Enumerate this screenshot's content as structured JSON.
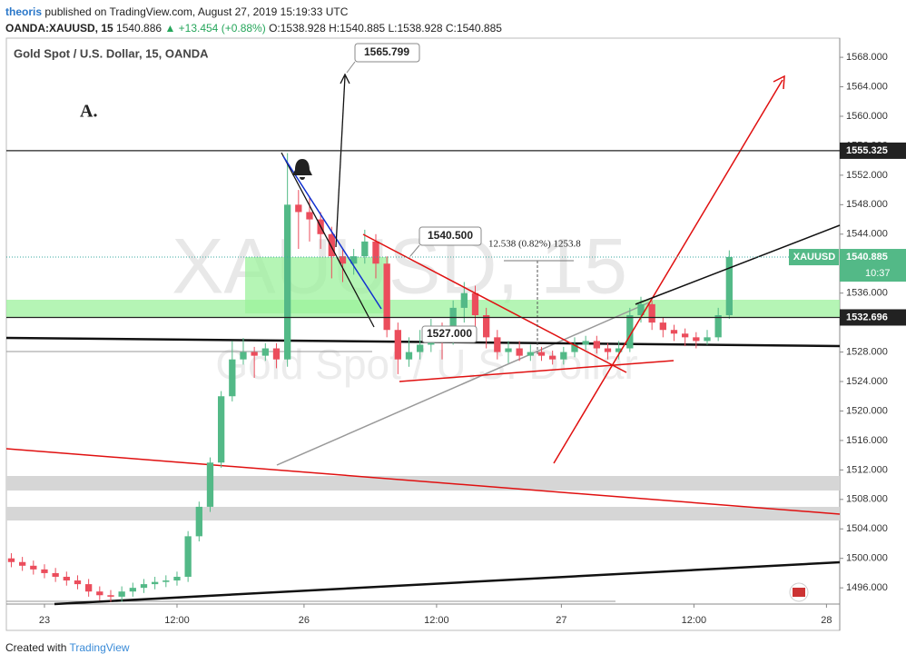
{
  "header": {
    "author": "theoris",
    "published": "published on TradingView.com, August 27, 2019 15:19:33 UTC",
    "symbol": "OANDA:XAUUSD, 15",
    "last": "1540.886",
    "change": "▲ +13.454 (+0.88%)",
    "ohlc": "O:1538.928 H:1540.885 L:1538.928 C:1540.885"
  },
  "chart_data": {
    "type": "candlestick",
    "title": "Gold Spot / U.S. Dollar, 15, OANDA",
    "watermark": [
      "XAUUSD, 15",
      "Gold Spot / U.S. Dollar"
    ],
    "x": [
      -3,
      -2,
      -1,
      0,
      1,
      2,
      3,
      4,
      5,
      6,
      7,
      8,
      9,
      10,
      11,
      12,
      13,
      14,
      15,
      16,
      17,
      18,
      19,
      20,
      21,
      22,
      23,
      24,
      25,
      26,
      27,
      28,
      29,
      30,
      31,
      32,
      33,
      34,
      35,
      36,
      37,
      38,
      39,
      40,
      41,
      42,
      43,
      44,
      45,
      46,
      47,
      48,
      49,
      50,
      51,
      52,
      53,
      54,
      55,
      56,
      57,
      58,
      59,
      60,
      61,
      62
    ],
    "open": [
      1500,
      1499.5,
      1499,
      1498.5,
      1498,
      1497.5,
      1497,
      1496.5,
      1495.5,
      1495,
      1494.8,
      1495.5,
      1496,
      1496.5,
      1496.8,
      1497,
      1497.5,
      1503,
      1507,
      1513,
      1522,
      1527,
      1528,
      1527.5,
      1528.5,
      1527,
      1548,
      1547,
      1546,
      1544,
      1541,
      1540,
      1541,
      1543,
      1540,
      1531,
      1527,
      1528,
      1529,
      1531,
      1530,
      1534,
      1536,
      1533,
      1530,
      1528,
      1528.5,
      1527.5,
      1528,
      1527.5,
      1527,
      1528,
      1529,
      1529.5,
      1528.5,
      1528,
      1528.5,
      1533,
      1534.5,
      1532,
      1531,
      1530.5,
      1530,
      1529.5,
      1530,
      1533
    ],
    "high": [
      1500.7,
      1500.2,
      1499.7,
      1499.2,
      1498.7,
      1498.2,
      1497.7,
      1497.2,
      1496.2,
      1495.7,
      1496.2,
      1496.7,
      1497.2,
      1497.5,
      1497.7,
      1498.2,
      1503.7,
      1507.7,
      1513.7,
      1522.7,
      1529.5,
      1529.9,
      1528.7,
      1529.2,
      1529.2,
      1555,
      1550,
      1549,
      1547,
      1545,
      1542,
      1542,
      1544.6,
      1544,
      1541,
      1532,
      1530,
      1531,
      1532.5,
      1532,
      1535,
      1537.5,
      1537,
      1534,
      1531,
      1529.5,
      1529.5,
      1529,
      1528.7,
      1528.2,
      1528.7,
      1530,
      1530.2,
      1530.2,
      1529.2,
      1529.5,
      1534,
      1535.5,
      1535,
      1532.7,
      1531.7,
      1531.2,
      1530.7,
      1531,
      1534,
      1541.8
    ],
    "low": [
      1498.8,
      1498.3,
      1497.8,
      1497.3,
      1496.8,
      1496.3,
      1495.8,
      1494.8,
      1494.3,
      1494.1,
      1494.1,
      1494.8,
      1495.3,
      1495.8,
      1496.1,
      1496.3,
      1496.8,
      1502.3,
      1506.3,
      1512.3,
      1521.3,
      1526.3,
      1524.5,
      1526.8,
      1525.8,
      1526,
      1542,
      1543,
      1542,
      1538,
      1537.5,
      1538.5,
      1540,
      1538,
      1530,
      1525,
      1526,
      1527,
      1528,
      1527,
      1529,
      1532,
      1531,
      1528.5,
      1527,
      1526.5,
      1526.8,
      1526.8,
      1526.8,
      1526.3,
      1526.3,
      1527.3,
      1528.3,
      1527.8,
      1527,
      1527,
      1528,
      1532,
      1531,
      1530,
      1529.5,
      1528.8,
      1528.5,
      1529,
      1529.5,
      1532.5
    ],
    "close": [
      1499.5,
      1499,
      1498.5,
      1498,
      1497.5,
      1497,
      1496.5,
      1495.5,
      1495,
      1494.8,
      1495.5,
      1496,
      1496.5,
      1496.8,
      1497,
      1497.5,
      1503,
      1507,
      1513,
      1522,
      1527,
      1528,
      1527.5,
      1528.5,
      1527,
      1548,
      1547,
      1546,
      1544,
      1541,
      1540,
      1541,
      1543,
      1540,
      1531,
      1527,
      1528,
      1529,
      1531,
      1530,
      1534,
      1536,
      1533,
      1530,
      1528,
      1528.5,
      1527.5,
      1528,
      1527.5,
      1527,
      1528,
      1529,
      1529.5,
      1528.5,
      1528,
      1528.5,
      1533,
      1534.5,
      1532,
      1531,
      1530.5,
      1530,
      1529.5,
      1530,
      1533,
      1540.9
    ],
    "up_color": "#53b987",
    "down_color": "#eb4d5c",
    "xlim": [
      -3.45,
      72.0
    ],
    "xticks": [
      {
        "value": 0,
        "label": "23"
      },
      {
        "value": 12,
        "label": "12:00"
      },
      {
        "value": 23.5,
        "label": "26"
      },
      {
        "value": 35.5,
        "label": "12:00"
      },
      {
        "value": 46.8,
        "label": "27"
      },
      {
        "value": 58.8,
        "label": "12:00"
      },
      {
        "value": 70.8,
        "label": "28"
      }
    ],
    "ylim": [
      1493.8,
      1570.6
    ],
    "yticks": [
      {
        "value": 1496,
        "label": "1496.000"
      },
      {
        "value": 1500,
        "label": "1500.000"
      },
      {
        "value": 1504,
        "label": "1504.000"
      },
      {
        "value": 1508,
        "label": "1508.000"
      },
      {
        "value": 1512,
        "label": "1512.000"
      },
      {
        "value": 1516,
        "label": "1516.000"
      },
      {
        "value": 1520,
        "label": "1520.000"
      },
      {
        "value": 1524,
        "label": "1524.000"
      },
      {
        "value": 1528,
        "label": "1528.000"
      },
      {
        "value": 1532,
        "label": "1532.000"
      },
      {
        "value": 1536,
        "label": "1536.000"
      },
      {
        "value": 1540,
        "label": "1540.000"
      },
      {
        "value": 1544,
        "label": "1544.000"
      },
      {
        "value": 1548,
        "label": "1548.000"
      },
      {
        "value": 1552,
        "label": "1552.000"
      },
      {
        "value": 1556,
        "label": "1556.000"
      },
      {
        "value": 1560,
        "label": "1560.000"
      },
      {
        "value": 1564,
        "label": "1564.000"
      },
      {
        "value": 1568,
        "label": "1568.000"
      }
    ],
    "price_lines": [
      1555.325,
      1532.696
    ],
    "last_price": {
      "value": 1540.885,
      "symbol": "XAUUSD",
      "countdown": "10:37"
    },
    "annotations": [
      "A.",
      "1565.799",
      "1540.500",
      "1527.000",
      "12.538 (0.82%) 1253.8"
    ]
  },
  "footer": {
    "text": "Created with",
    "brand": "TradingView"
  }
}
